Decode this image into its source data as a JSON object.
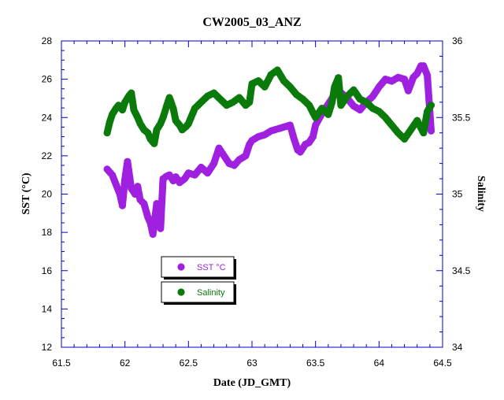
{
  "chart_data": {
    "type": "scatter",
    "title": "CW2005_03_ANZ",
    "xlabel": "Date (JD_GMT)",
    "ylabel": "SST (°C)",
    "y2label": "Salinity",
    "xlim": [
      61.5,
      64.5
    ],
    "ylim": [
      12,
      28
    ],
    "y2lim": [
      34,
      36
    ],
    "x_ticks": [
      "61.5",
      "62",
      "62.5",
      "63",
      "63.5",
      "64",
      "64.5"
    ],
    "y_ticks": [
      "12",
      "14",
      "16",
      "18",
      "20",
      "22",
      "24",
      "26",
      "28"
    ],
    "y2_ticks": [
      "34",
      "34.5",
      "35",
      "35.5",
      "36"
    ],
    "grid": false,
    "legend": [
      {
        "label": "SST °C",
        "color": "#a020e0"
      },
      {
        "label": "Salinity",
        "color": "#0a7a0a"
      }
    ],
    "series": [
      {
        "name": "SST °C",
        "axis": "left",
        "color": "#a020e0",
        "x": [
          61.86,
          61.9,
          61.93,
          61.96,
          61.98,
          62.0,
          62.02,
          62.05,
          62.08,
          62.1,
          62.12,
          62.15,
          62.18,
          62.2,
          62.22,
          62.25,
          62.28,
          62.3,
          62.32,
          62.35,
          62.38,
          62.4,
          62.43,
          62.47,
          62.5,
          62.55,
          62.6,
          62.65,
          62.7,
          62.74,
          62.78,
          62.82,
          62.86,
          62.9,
          62.95,
          62.98,
          63.0,
          63.05,
          63.1,
          63.15,
          63.2,
          63.25,
          63.3,
          63.33,
          63.36,
          63.38,
          63.42,
          63.45,
          63.48,
          63.5,
          63.55,
          63.6,
          63.65,
          63.7,
          63.75,
          63.8,
          63.85,
          63.9,
          63.95,
          64.0,
          64.05,
          64.1,
          64.15,
          64.2,
          64.23,
          64.27,
          64.3,
          64.33,
          64.35,
          64.38,
          64.41
        ],
        "y": [
          21.3,
          21.0,
          20.5,
          20.0,
          19.4,
          20.8,
          21.7,
          20.3,
          20.0,
          20.4,
          19.7,
          19.5,
          18.8,
          18.5,
          17.9,
          19.5,
          18.2,
          20.8,
          20.9,
          21.0,
          20.7,
          20.9,
          20.6,
          20.8,
          21.1,
          21.0,
          21.4,
          21.1,
          21.6,
          22.4,
          22.0,
          21.6,
          21.5,
          21.8,
          22.0,
          22.6,
          22.8,
          23.0,
          23.1,
          23.3,
          23.4,
          23.5,
          23.6,
          22.9,
          22.3,
          22.2,
          22.6,
          22.7,
          23.0,
          23.6,
          24.2,
          24.7,
          25.2,
          25.3,
          25.0,
          24.6,
          24.4,
          24.8,
          25.1,
          25.6,
          26.0,
          25.9,
          26.1,
          26.0,
          25.4,
          26.1,
          26.3,
          26.7,
          26.7,
          26.2,
          23.3
        ]
      },
      {
        "name": "Salinity",
        "axis": "right",
        "color": "#0a7a0a",
        "x": [
          61.86,
          61.88,
          61.9,
          61.93,
          61.95,
          61.98,
          62.0,
          62.03,
          62.05,
          62.07,
          62.1,
          62.12,
          62.15,
          62.18,
          62.2,
          62.23,
          62.25,
          62.28,
          62.3,
          62.33,
          62.35,
          62.38,
          62.4,
          62.43,
          62.45,
          62.48,
          62.5,
          62.55,
          62.6,
          62.65,
          62.7,
          62.75,
          62.8,
          62.85,
          62.9,
          62.95,
          62.98,
          63.0,
          63.05,
          63.1,
          63.15,
          63.2,
          63.25,
          63.3,
          63.35,
          63.4,
          63.45,
          63.5,
          63.55,
          63.6,
          63.63,
          63.65,
          63.68,
          63.7,
          63.75,
          63.8,
          63.85,
          63.9,
          63.95,
          64.0,
          64.05,
          64.1,
          64.15,
          64.2,
          64.25,
          64.3,
          64.35,
          64.38,
          64.41
        ],
        "y": [
          35.4,
          35.47,
          35.52,
          35.56,
          35.58,
          35.55,
          35.6,
          35.64,
          35.66,
          35.55,
          35.5,
          35.46,
          35.42,
          35.4,
          35.36,
          35.33,
          35.42,
          35.46,
          35.5,
          35.58,
          35.63,
          35.56,
          35.48,
          35.45,
          35.42,
          35.44,
          35.46,
          35.56,
          35.6,
          35.64,
          35.66,
          35.62,
          35.58,
          35.6,
          35.63,
          35.58,
          35.6,
          35.72,
          35.74,
          35.7,
          35.78,
          35.81,
          35.74,
          35.7,
          35.65,
          35.62,
          35.58,
          35.5,
          35.56,
          35.52,
          35.6,
          35.7,
          35.76,
          35.58,
          35.64,
          35.68,
          35.62,
          35.6,
          35.56,
          35.54,
          35.5,
          35.45,
          35.4,
          35.36,
          35.42,
          35.48,
          35.4,
          35.54,
          35.58
        ]
      }
    ]
  }
}
